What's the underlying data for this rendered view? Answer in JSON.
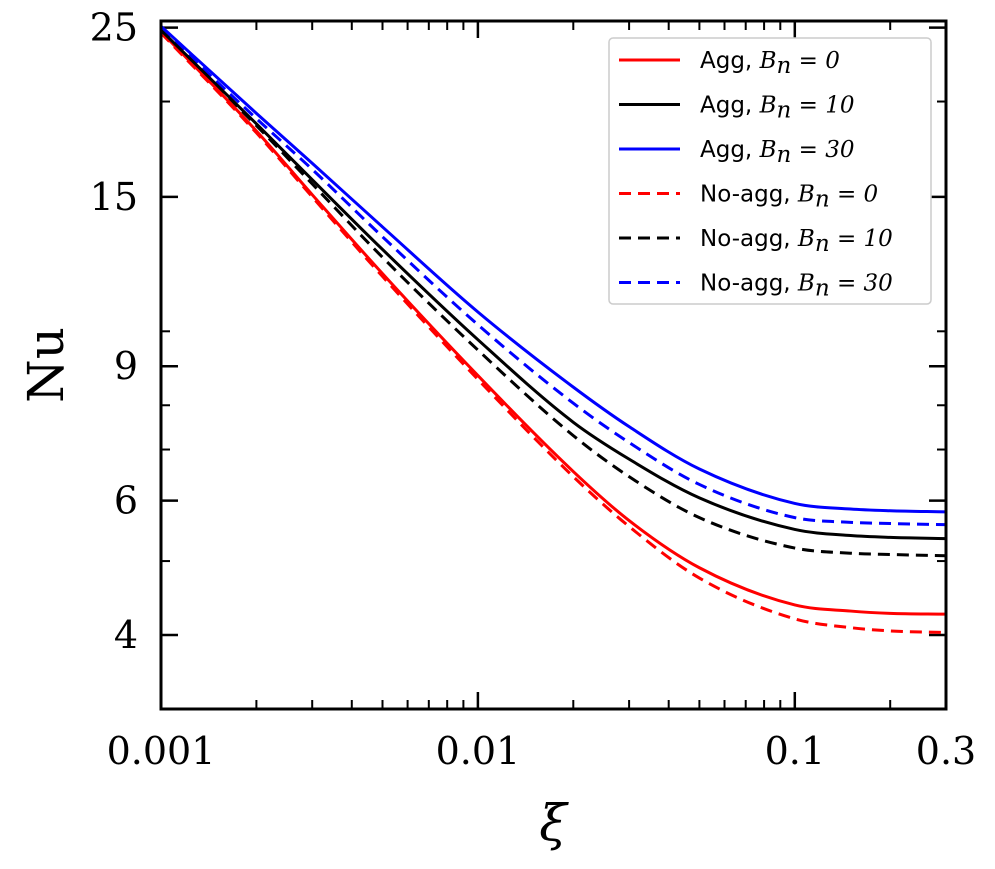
{
  "chart_data": {
    "type": "line",
    "title": "",
    "xlabel": "ξ",
    "ylabel": "Nu",
    "xscale": "log",
    "yscale": "log",
    "xlim": [
      0.001,
      0.3
    ],
    "ylim": [
      3.2,
      25.5
    ],
    "xticks": [
      {
        "value": 0.001,
        "label": "0.001"
      },
      {
        "value": 0.01,
        "label": "0.01"
      },
      {
        "value": 0.1,
        "label": "0.1"
      },
      {
        "value": 0.3,
        "label": "0.3"
      }
    ],
    "yticks": [
      {
        "value": 4,
        "label": "4"
      },
      {
        "value": 6,
        "label": "6"
      },
      {
        "value": 9,
        "label": "9"
      },
      {
        "value": 15,
        "label": "15"
      },
      {
        "value": 25,
        "label": "25"
      }
    ],
    "legend_position": "top-right",
    "x": [
      0.001,
      0.002,
      0.003,
      0.005,
      0.01,
      0.02,
      0.03,
      0.05,
      0.1,
      0.15,
      0.2,
      0.3
    ],
    "series": [
      {
        "name": "Agg, ",
        "sym": "B",
        "sub": "n",
        "rhs": " = 0",
        "color": "#ff0000",
        "dash": "solid",
        "values": [
          24.7,
          18.3,
          15.1,
          11.9,
          8.75,
          6.55,
          5.65,
          4.9,
          4.38,
          4.3,
          4.27,
          4.26
        ]
      },
      {
        "name": "Agg, ",
        "sym": "B",
        "sub": "n",
        "rhs": " = 10",
        "color": "#000000",
        "dash": "solid",
        "values": [
          24.8,
          18.7,
          15.8,
          12.8,
          9.75,
          7.6,
          6.8,
          6.05,
          5.5,
          5.4,
          5.37,
          5.35
        ]
      },
      {
        "name": "Agg, ",
        "sym": "B",
        "sub": "n",
        "rhs": " = 30",
        "color": "#0000ff",
        "dash": "solid",
        "values": [
          25.1,
          19.3,
          16.6,
          13.7,
          10.6,
          8.45,
          7.5,
          6.6,
          5.95,
          5.85,
          5.82,
          5.8
        ]
      },
      {
        "name": "No-agg, ",
        "sym": "B",
        "sub": "n",
        "rhs": " = 0",
        "color": "#ff0000",
        "dash": "dashed",
        "values": [
          24.6,
          18.2,
          15.0,
          11.8,
          8.65,
          6.45,
          5.55,
          4.75,
          4.2,
          4.09,
          4.05,
          4.03
        ]
      },
      {
        "name": "No-agg, ",
        "sym": "B",
        "sub": "n",
        "rhs": " = 10",
        "color": "#000000",
        "dash": "dashed",
        "values": [
          24.7,
          18.6,
          15.6,
          12.5,
          9.45,
          7.3,
          6.45,
          5.7,
          5.2,
          5.12,
          5.1,
          5.08
        ]
      },
      {
        "name": "No-agg, ",
        "sym": "B",
        "sub": "n",
        "rhs": " = 30",
        "color": "#0000ff",
        "dash": "dashed",
        "values": [
          24.9,
          19.0,
          16.3,
          13.3,
          10.2,
          8.05,
          7.15,
          6.3,
          5.7,
          5.62,
          5.6,
          5.58
        ]
      }
    ]
  }
}
